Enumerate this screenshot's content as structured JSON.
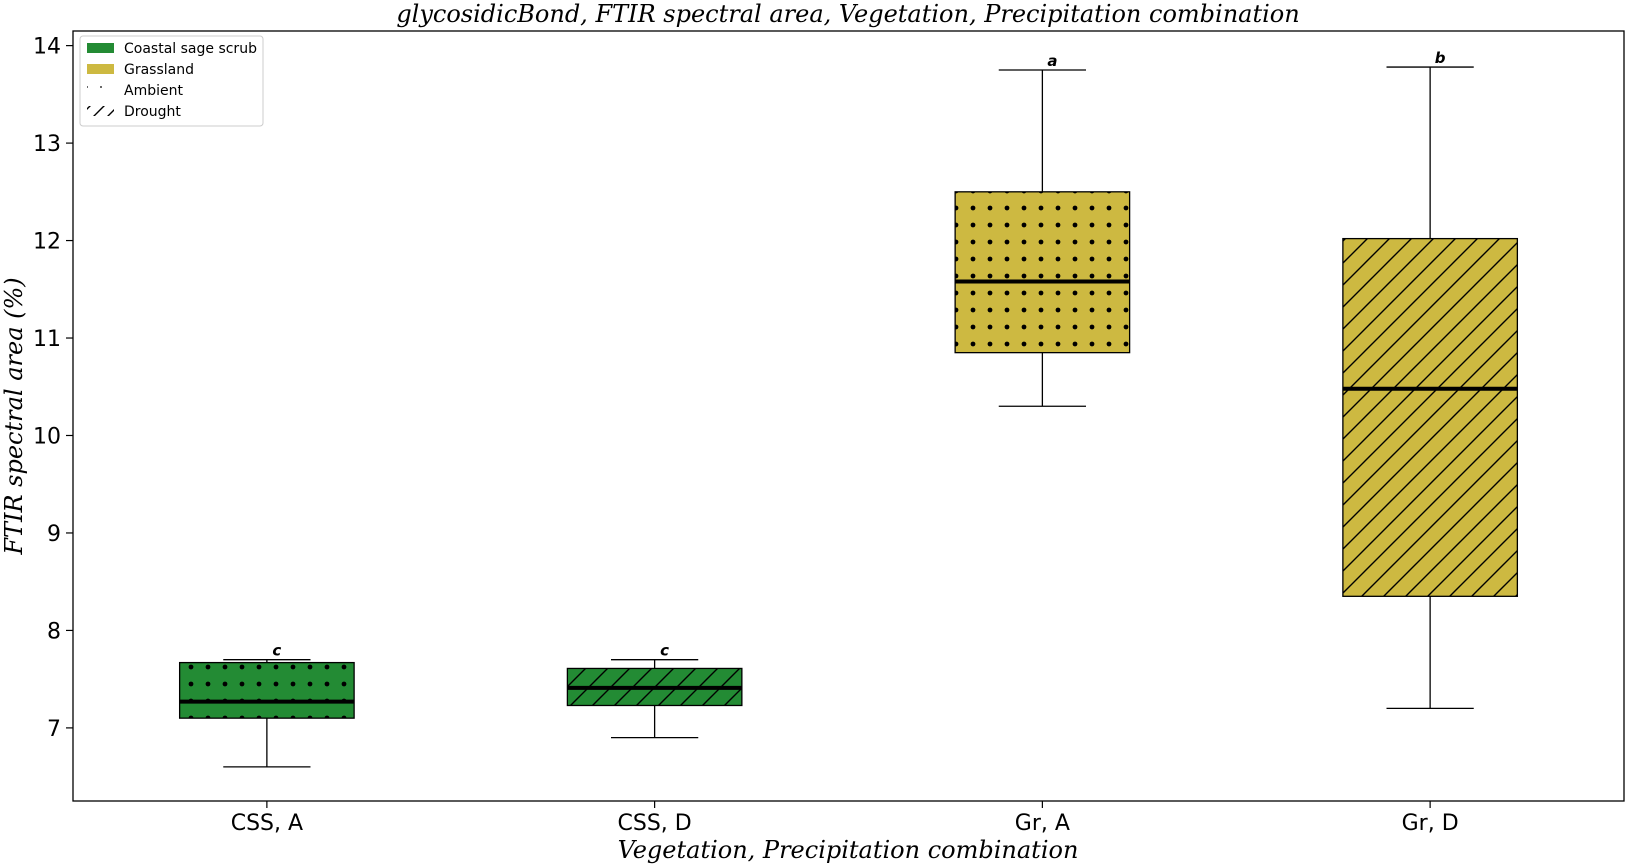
{
  "chart_data": {
    "type": "box",
    "title": "glycosidicBond, FTIR spectral area, Vegetation, Precipitation combination",
    "xlabel": "Vegetation, Precipitation combination",
    "ylabel": "FTIR spectral area (%)",
    "ylim": [
      6.25,
      14.15
    ],
    "yticks": [
      7,
      8,
      9,
      10,
      11,
      12,
      13,
      14
    ],
    "categories": [
      "CSS, A",
      "CSS, D",
      "Gr, A",
      "Gr, D"
    ],
    "boxes": [
      {
        "category": "CSS, A",
        "whisker_low": 6.6,
        "q1": 7.1,
        "median": 7.27,
        "q3": 7.67,
        "whisker_high": 7.7,
        "letter": "c",
        "color": "#238b34",
        "pattern": "dots"
      },
      {
        "category": "CSS, D",
        "whisker_low": 6.9,
        "q1": 7.23,
        "median": 7.41,
        "q3": 7.61,
        "whisker_high": 7.7,
        "letter": "c",
        "color": "#238b34",
        "pattern": "hatch"
      },
      {
        "category": "Gr, A",
        "whisker_low": 10.3,
        "q1": 10.85,
        "median": 11.58,
        "q3": 12.5,
        "whisker_high": 13.75,
        "letter": "a",
        "color": "#cdb941",
        "pattern": "dots"
      },
      {
        "category": "Gr, D",
        "whisker_low": 7.2,
        "q1": 8.35,
        "median": 10.48,
        "q3": 12.02,
        "whisker_high": 13.78,
        "letter": "b",
        "color": "#cdb941",
        "pattern": "hatch"
      }
    ],
    "legend": {
      "position": "upper-left",
      "entries": [
        {
          "label": "Coastal sage scrub",
          "kind": "fill",
          "color": "#238b34"
        },
        {
          "label": "Grassland",
          "kind": "fill",
          "color": "#cdb941"
        },
        {
          "label": "Ambient",
          "kind": "dots"
        },
        {
          "label": "Drought",
          "kind": "hatch"
        }
      ]
    },
    "grid": false
  }
}
